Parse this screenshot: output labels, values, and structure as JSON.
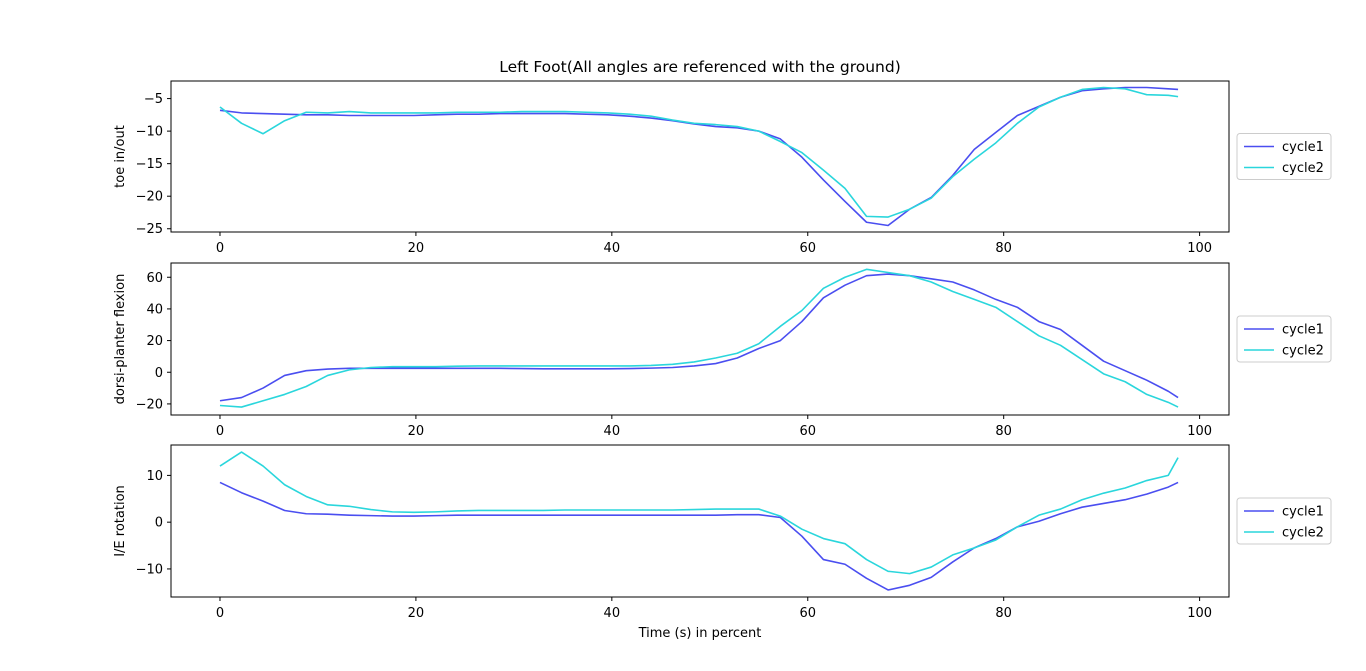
{
  "chart_data": {
    "type": "line",
    "title": "Left Foot(All angles are referenced with the ground)",
    "xlabel": "Time (s) in percent",
    "colors": {
      "cycle1": "#4a4ef0",
      "cycle2": "#2ad6dc"
    },
    "subplots": [
      {
        "ylabel": "toe in/out",
        "xlim": [
          -5,
          103
        ],
        "ylim": [
          -25.5,
          -2.3
        ],
        "xticks": [
          0,
          20,
          40,
          60,
          80,
          100
        ],
        "yticks": [
          -5,
          -10,
          -15,
          -20,
          -25
        ],
        "legend": "right",
        "series": [
          {
            "name": "cycle1",
            "x": [
              0,
              2.2,
              4.4,
              6.6,
              8.8,
              11,
              13.2,
              15.4,
              17.6,
              19.8,
              22,
              24.2,
              26.4,
              28.6,
              30.8,
              33,
              35.2,
              37.4,
              39.6,
              41.8,
              44,
              46.2,
              48.4,
              50.6,
              52.8,
              55,
              57.2,
              59.4,
              61.6,
              63.8,
              66,
              68.2,
              70.4,
              72.6,
              74.8,
              77,
              79.2,
              81.4,
              83.6,
              85.8,
              88,
              90.2,
              92.4,
              94.6,
              96.8,
              97.8
            ],
            "y": [
              -6.8,
              -7.2,
              -7.3,
              -7.4,
              -7.5,
              -7.5,
              -7.6,
              -7.6,
              -7.6,
              -7.6,
              -7.5,
              -7.4,
              -7.4,
              -7.3,
              -7.3,
              -7.3,
              -7.3,
              -7.4,
              -7.5,
              -7.7,
              -8.0,
              -8.4,
              -8.9,
              -9.3,
              -9.5,
              -10.0,
              -11.2,
              -14.0,
              -17.5,
              -20.8,
              -24.0,
              -24.5,
              -22.0,
              -20.2,
              -16.8,
              -12.8,
              -10.2,
              -7.6,
              -6.2,
              -4.8,
              -3.8,
              -3.5,
              -3.3,
              -3.3,
              -3.5,
              -3.6
            ]
          },
          {
            "name": "cycle2",
            "x": [
              0,
              2.2,
              4.4,
              6.6,
              8.8,
              11,
              13.2,
              15.4,
              17.6,
              19.8,
              22,
              24.2,
              26.4,
              28.6,
              30.8,
              33,
              35.2,
              37.4,
              39.6,
              41.8,
              44,
              46.2,
              48.4,
              50.6,
              52.8,
              55,
              57.2,
              59.4,
              61.6,
              63.8,
              66,
              68.2,
              70.4,
              72.6,
              74.8,
              77,
              79.2,
              81.4,
              83.6,
              85.8,
              88,
              90.2,
              92.4,
              94.6,
              96.8,
              97.8
            ],
            "y": [
              -6.3,
              -8.8,
              -10.4,
              -8.4,
              -7.1,
              -7.2,
              -7.0,
              -7.2,
              -7.2,
              -7.2,
              -7.2,
              -7.1,
              -7.1,
              -7.1,
              -7.0,
              -7.0,
              -7.0,
              -7.1,
              -7.2,
              -7.4,
              -7.7,
              -8.3,
              -8.8,
              -9.0,
              -9.3,
              -10.0,
              -11.6,
              -13.3,
              -16.0,
              -18.8,
              -23.1,
              -23.2,
              -22.0,
              -20.3,
              -17.0,
              -14.3,
              -11.8,
              -8.8,
              -6.3,
              -4.8,
              -3.6,
              -3.3,
              -3.5,
              -4.4,
              -4.5,
              -4.7
            ]
          }
        ]
      },
      {
        "ylabel": "dorsi-planter flexion",
        "xlim": [
          -5,
          103
        ],
        "ylim": [
          -27,
          69
        ],
        "xticks": [
          0,
          20,
          40,
          60,
          80,
          100
        ],
        "yticks": [
          60,
          40,
          20,
          0,
          -20
        ],
        "legend": "right",
        "series": [
          {
            "name": "cycle1",
            "x": [
              0,
              2.2,
              4.4,
              6.6,
              8.8,
              11,
              13.2,
              15.4,
              17.6,
              19.8,
              22,
              24.2,
              26.4,
              28.6,
              30.8,
              33,
              35.2,
              37.4,
              39.6,
              41.8,
              44,
              46.2,
              48.4,
              50.6,
              52.8,
              55,
              57.2,
              59.4,
              61.6,
              63.8,
              66,
              68.2,
              70.4,
              72.6,
              74.8,
              77,
              79.2,
              81.4,
              83.6,
              85.8,
              88,
              90.2,
              92.4,
              94.6,
              96.8,
              97.8
            ],
            "y": [
              -18,
              -16,
              -10,
              -2,
              1,
              2,
              2.5,
              2.5,
              2.5,
              2.5,
              2.5,
              2.5,
              2.5,
              2.5,
              2.3,
              2.2,
              2.2,
              2.2,
              2.2,
              2.3,
              2.6,
              3,
              4,
              5.5,
              9,
              15,
              20,
              32,
              47,
              55,
              61,
              62,
              61,
              59,
              57,
              52,
              46,
              41,
              32,
              27,
              17,
              7,
              1,
              -5,
              -12,
              -16
            ]
          },
          {
            "name": "cycle2",
            "x": [
              0,
              2.2,
              4.4,
              6.6,
              8.8,
              11,
              13.2,
              15.4,
              17.6,
              19.8,
              22,
              24.2,
              26.4,
              28.6,
              30.8,
              33,
              35.2,
              37.4,
              39.6,
              41.8,
              44,
              46.2,
              48.4,
              50.6,
              52.8,
              55,
              57.2,
              59.4,
              61.6,
              63.8,
              66,
              68.2,
              70.4,
              72.6,
              74.8,
              77,
              79.2,
              81.4,
              83.6,
              85.8,
              88,
              90.2,
              92.4,
              94.6,
              96.8,
              97.8
            ],
            "y": [
              -21,
              -22,
              -18,
              -14,
              -9,
              -2,
              1.5,
              3,
              3.5,
              3.5,
              3.5,
              3.8,
              4,
              4,
              4,
              4,
              4,
              4,
              4,
              4,
              4.3,
              5,
              6.5,
              9,
              12,
              18,
              29,
              39,
              53,
              60,
              65,
              63,
              61,
              57,
              51,
              46,
              41,
              32,
              23,
              17,
              8,
              -1,
              -6,
              -14,
              -19,
              -22
            ]
          }
        ]
      },
      {
        "ylabel": "I/E rotation",
        "xlim": [
          -5,
          103
        ],
        "ylim": [
          -16,
          16.5
        ],
        "xticks": [
          0,
          20,
          40,
          60,
          80,
          100
        ],
        "yticks": [
          10,
          0,
          -10
        ],
        "legend": "right",
        "series": [
          {
            "name": "cycle1",
            "x": [
              0,
              2.2,
              4.4,
              6.6,
              8.8,
              11,
              13.2,
              15.4,
              17.6,
              19.8,
              22,
              24.2,
              26.4,
              28.6,
              30.8,
              33,
              35.2,
              37.4,
              39.6,
              41.8,
              44,
              46.2,
              48.4,
              50.6,
              52.8,
              55,
              57.2,
              59.4,
              61.6,
              63.8,
              66,
              68.2,
              70.4,
              72.6,
              74.8,
              77,
              79.2,
              81.4,
              83.6,
              85.8,
              88,
              90.2,
              92.4,
              94.6,
              96.8,
              97.8
            ],
            "y": [
              8.5,
              6.3,
              4.5,
              2.5,
              1.8,
              1.7,
              1.5,
              1.4,
              1.3,
              1.3,
              1.4,
              1.5,
              1.5,
              1.5,
              1.5,
              1.5,
              1.5,
              1.5,
              1.5,
              1.5,
              1.5,
              1.5,
              1.5,
              1.5,
              1.6,
              1.6,
              1.0,
              -3.0,
              -8.0,
              -9.0,
              -12.0,
              -14.5,
              -13.5,
              -11.8,
              -8.5,
              -5.5,
              -3.5,
              -1.0,
              0.2,
              1.8,
              3.2,
              4.0,
              4.8,
              6.0,
              7.5,
              8.5
            ]
          },
          {
            "name": "cycle2",
            "x": [
              0,
              2.2,
              4.4,
              6.6,
              8.8,
              11,
              13.2,
              15.4,
              17.6,
              19.8,
              22,
              24.2,
              26.4,
              28.6,
              30.8,
              33,
              35.2,
              37.4,
              39.6,
              41.8,
              44,
              46.2,
              48.4,
              50.6,
              52.8,
              55,
              57.2,
              59.4,
              61.6,
              63.8,
              66,
              68.2,
              70.4,
              72.6,
              74.8,
              77,
              79.2,
              81.4,
              83.6,
              85.8,
              88,
              90.2,
              92.4,
              94.6,
              96.8,
              97.8
            ],
            "y": [
              12.0,
              15.0,
              12.0,
              8.0,
              5.5,
              3.7,
              3.4,
              2.7,
              2.2,
              2.1,
              2.2,
              2.4,
              2.5,
              2.5,
              2.5,
              2.5,
              2.6,
              2.6,
              2.6,
              2.6,
              2.6,
              2.6,
              2.7,
              2.8,
              2.8,
              2.8,
              1.3,
              -1.5,
              -3.5,
              -4.6,
              -8.0,
              -10.5,
              -11.0,
              -9.6,
              -7.0,
              -5.5,
              -3.8,
              -1.0,
              1.5,
              2.8,
              4.8,
              6.2,
              7.3,
              8.9,
              10.0,
              13.8
            ]
          }
        ]
      }
    ]
  }
}
